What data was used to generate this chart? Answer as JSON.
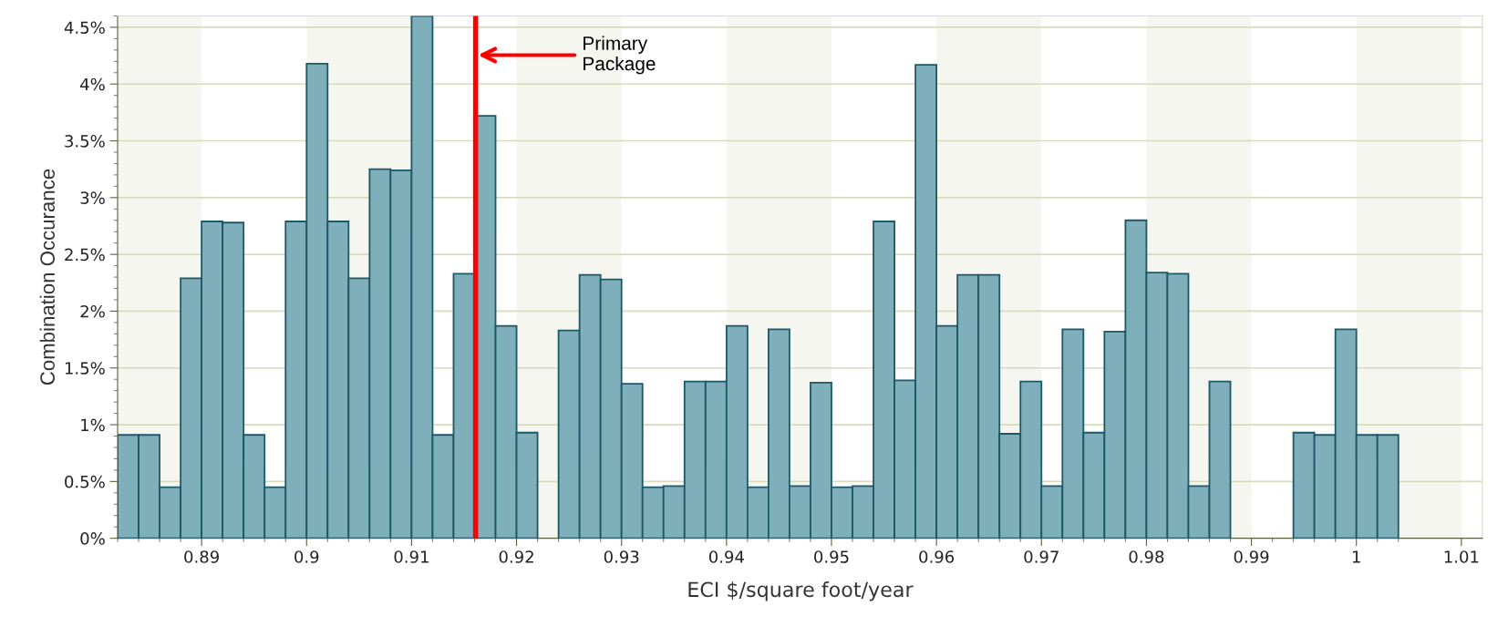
{
  "chart_data": {
    "type": "histogram",
    "xlabel": "ECI $/square foot/year",
    "ylabel": "Combination Occurance",
    "bins": [
      0.882,
      0.884,
      0.886,
      0.888,
      0.89,
      0.892,
      0.894,
      0.896,
      0.898,
      0.9,
      0.902,
      0.904,
      0.906,
      0.908,
      0.91,
      0.912,
      0.914,
      0.916,
      0.918,
      0.92,
      0.922,
      0.924,
      0.926,
      0.928,
      0.93,
      0.932,
      0.934,
      0.936,
      0.938,
      0.94,
      0.942,
      0.944,
      0.946,
      0.948,
      0.95,
      0.952,
      0.954,
      0.956,
      0.958,
      0.96,
      0.962,
      0.964,
      0.966,
      0.968,
      0.97,
      0.972,
      0.974,
      0.976,
      0.978,
      0.98,
      0.982,
      0.984,
      0.986,
      0.988,
      0.99,
      0.992,
      0.994,
      0.996,
      0.998,
      1.0,
      1.002,
      1.004
    ],
    "values": [
      0.91,
      0.91,
      0.45,
      2.29,
      2.79,
      2.78,
      0.91,
      0.45,
      2.79,
      4.18,
      2.79,
      2.29,
      3.25,
      3.24,
      4.6,
      0.91,
      2.33,
      3.72,
      1.87,
      0.93,
      0,
      1.83,
      2.32,
      2.28,
      1.36,
      0.45,
      0.46,
      1.38,
      1.38,
      1.87,
      0.45,
      1.84,
      0.46,
      1.37,
      0.45,
      0.46,
      2.79,
      1.39,
      4.17,
      1.87,
      2.32,
      2.32,
      0.92,
      1.38,
      0.46,
      1.84,
      0.93,
      1.82,
      2.8,
      2.34,
      2.33,
      0.46,
      1.38,
      0,
      0,
      0,
      0.93,
      0.91,
      1.84,
      0.91,
      0.91
    ],
    "color": "#7fafbb",
    "xlim": [
      0.882,
      1.012
    ],
    "xticks": [
      0.89,
      0.9,
      0.91,
      0.92,
      0.93,
      0.94,
      0.95,
      0.96,
      0.97,
      0.98,
      0.99,
      1,
      1.01
    ],
    "ylim": [
      0,
      4.6
    ],
    "yticks": [
      {
        "value": 0,
        "label": "0%"
      },
      {
        "value": 0.5,
        "label": "0.5%"
      },
      {
        "value": 1,
        "label": "1%"
      },
      {
        "value": 1.5,
        "label": "1.5%"
      },
      {
        "value": 2,
        "label": "2%"
      },
      {
        "value": 2.5,
        "label": "2.5%"
      },
      {
        "value": 3,
        "label": "3%"
      },
      {
        "value": 3.5,
        "label": "3.5%"
      },
      {
        "value": 4,
        "label": "4%"
      },
      {
        "value": 4.5,
        "label": "4.5%"
      }
    ],
    "grid": "y",
    "ref_lines": [
      {
        "axis": "x",
        "value": 0.9161,
        "label": "Primary\nPackage",
        "color": "#ff0000"
      }
    ],
    "bands": [
      {
        "axis": "x",
        "from": 0.882,
        "to": 0.89,
        "color": "#f6f6f0"
      },
      {
        "axis": "x",
        "from": 0.9,
        "to": 0.91,
        "color": "#f6f6f0"
      },
      {
        "axis": "x",
        "from": 0.92,
        "to": 0.93,
        "color": "#f6f6f0"
      },
      {
        "axis": "x",
        "from": 0.94,
        "to": 0.95,
        "color": "#f6f6f0"
      },
      {
        "axis": "x",
        "from": 0.96,
        "to": 0.97,
        "color": "#f6f6f0"
      },
      {
        "axis": "x",
        "from": 0.98,
        "to": 0.99,
        "color": "#f6f6f0"
      },
      {
        "axis": "x",
        "from": 1.0,
        "to": 1.01,
        "color": "#f6f6f0"
      }
    ]
  }
}
